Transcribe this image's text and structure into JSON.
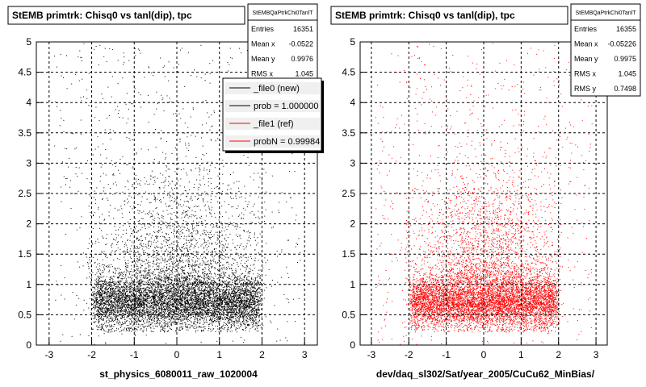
{
  "footer": "",
  "panels": [
    {
      "title": "StEMB primtrk: Chisq0 vs tanl(dip), tpc",
      "stats": {
        "name": "StEMBQaPtrkChi0TanlT",
        "rows": [
          {
            "label": "Entries",
            "value": "16351"
          },
          {
            "label": "Mean x",
            "value": "-0.0522"
          },
          {
            "label": "Mean y",
            "value": "0.9976"
          },
          {
            "label": "RMS x",
            "value": "1.045"
          }
        ]
      },
      "legend": [
        {
          "label": "_file0 (new)",
          "color": "#000000"
        },
        {
          "label": "prob = 1.000000",
          "color": "#000000"
        },
        {
          "label": "_file1 (ref)",
          "color": "#ff0000"
        },
        {
          "label": "probN = 0.99984",
          "color": "#ff0000"
        }
      ],
      "xlabel": "st_physics_6080011_raw_1020004",
      "color": "#000000"
    },
    {
      "title": "StEMB primtrk: Chisq0 vs tanl(dip), tpc",
      "stats": {
        "name": "StEMBQaPtrkChi0TanlT",
        "rows": [
          {
            "label": "Entries",
            "value": "16355"
          },
          {
            "label": "Mean x",
            "value": "-0.05226"
          },
          {
            "label": "Mean y",
            "value": "0.9975"
          },
          {
            "label": "RMS x",
            "value": "1.045"
          },
          {
            "label": "RMS y",
            "value": "0.7498"
          }
        ]
      },
      "xlabel": "dev/daq_sl302/Sat/year_2005/CuCu62_MinBias/",
      "color": "#ff0000"
    }
  ],
  "chart_data": [
    {
      "type": "scatter",
      "title": "StEMB primtrk: Chisq0 vs tanl(dip), tpc",
      "xlabel": "st_physics_6080011_raw_1020004",
      "ylabel": "",
      "xlim": [
        -3.3,
        3.3
      ],
      "ylim": [
        0,
        5
      ],
      "xticks": [
        "-3",
        "-2",
        "-1",
        "0",
        "1",
        "2",
        "3"
      ],
      "yticks": [
        "0",
        "0.5",
        "1",
        "1.5",
        "2",
        "2.5",
        "3",
        "3.5",
        "4",
        "4.5",
        "5"
      ],
      "grid": true,
      "series": [
        {
          "name": "_file0 (new)",
          "color": "#000000",
          "entries": 16351,
          "mean_x": -0.0522,
          "mean_y": 0.9976,
          "rms_x": 1.045
        }
      ],
      "dense_region": {
        "x": [
          -2.0,
          2.0
        ],
        "y": [
          0.25,
          1.2
        ]
      }
    },
    {
      "type": "scatter",
      "title": "StEMB primtrk: Chisq0 vs tanl(dip), tpc",
      "xlabel": "dev/daq_sl302/Sat/year_2005/CuCu62_MinBias/",
      "ylabel": "",
      "xlim": [
        -3.3,
        3.3
      ],
      "ylim": [
        0,
        5
      ],
      "xticks": [
        "-3",
        "-2",
        "-1",
        "0",
        "1",
        "2",
        "3"
      ],
      "yticks": [
        "0",
        "0.5",
        "1",
        "1.5",
        "2",
        "2.5",
        "3",
        "3.5",
        "4",
        "4.5",
        "5"
      ],
      "grid": true,
      "series": [
        {
          "name": "_file1 (ref)",
          "color": "#ff0000",
          "entries": 16355,
          "mean_x": -0.05226,
          "mean_y": 0.9975,
          "rms_x": 1.045,
          "rms_y": 0.7498
        }
      ],
      "dense_region": {
        "x": [
          -2.0,
          2.0
        ],
        "y": [
          0.25,
          1.2
        ]
      }
    }
  ]
}
